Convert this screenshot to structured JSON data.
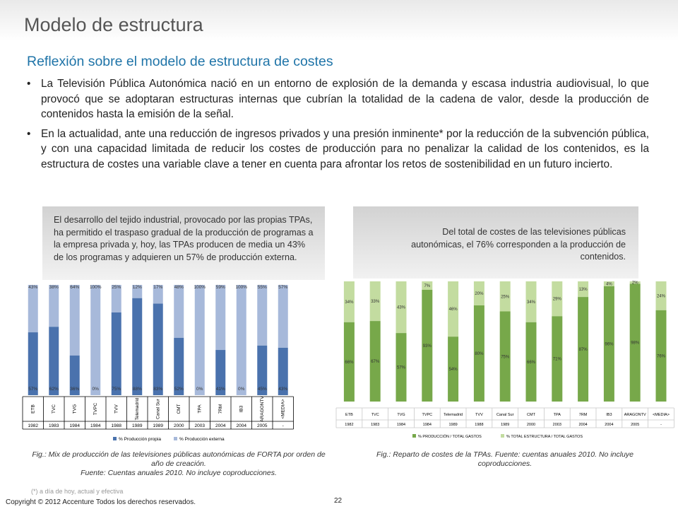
{
  "slide": {
    "title": "Modelo de estructura",
    "subtitle": "Reflexión sobre el modelo de estructura de costes",
    "bullets": [
      "La Televisión Pública Autonómica nació en un entorno de explosión de la demanda y escasa industria audiovisual, lo que provocó que se adoptaran estructuras internas que cubrían la totalidad de la cadena de valor, desde la producción de contenidos hasta la emisión de la señal.",
      "En la actualidad, ante una reducción de ingresos privados y una presión inminente* por la reducción de la subvención pública, y con una capacidad limitada de reducir los costes de producción para no penalizar la calidad de los contenidos, es la estructura de costes una variable clave a tener en cuenta para afrontar los retos de sostenibilidad en un futuro incierto."
    ],
    "callout_left": "El desarrollo del tejido industrial, provocado por las propias TPAs, ha permitido el traspaso gradual de la producción de programas a la empresa privada y, hoy, las TPAs producen de media un 43% de los programas y adquieren un 57% de producción externa.",
    "callout_right": "Del total de costes de las televisiones públicas autonómicas, el 76% corresponden a la producción de contenidos.",
    "caption_left": "Fig.: Mix de producción de las televisiones públicas autonómicas de FORTA por orden de año de creación.\nFuente: Cuentas anuales 2010. No incluye coproducciones.",
    "caption_right": "Fig.: Reparto de costes de la TPAs. Fuente: cuentas anuales 2010. No incluye coproducciones.",
    "footnote": "(*) a día de hoy, actual y efectiva",
    "copyright": "Copyright © 2012 Accenture  Todos los derechos reservados.",
    "page_number": "22"
  },
  "colors": {
    "title": "#555555",
    "subtitle": "#1f74a8",
    "propia": "#4a72ad",
    "externa": "#a7b9da",
    "produccion": "#77a84a",
    "estructura": "#c3dca0"
  },
  "chart_data": [
    {
      "type": "bar",
      "stacked": true,
      "orientation": "vertical",
      "categories": [
        "ETB",
        "TVC",
        "TVG",
        "TVPC",
        "TVV",
        "Telemadrid",
        "Canal Sur",
        "CMT",
        "TPA",
        "7RM",
        "IB3",
        "ARAGONTV",
        "<MEDIA>"
      ],
      "years": [
        "1982",
        "1983",
        "1984",
        "1984",
        "1988",
        "1989",
        "1989",
        "2000",
        "2003",
        "2004",
        "2004",
        "2005",
        "-"
      ],
      "series": [
        {
          "name": "% Producción propia",
          "values": [
            57,
            62,
            36,
            0,
            75,
            88,
            83,
            52,
            0,
            41,
            0,
            45,
            43
          ],
          "labels": [
            "57%",
            "62%",
            "36%",
            "0%",
            "75%",
            "88%",
            "83%",
            "52%",
            "0%",
            "41%",
            "0%",
            "45%",
            "43%"
          ]
        },
        {
          "name": "% Producción externa",
          "values": [
            43,
            38,
            64,
            100,
            25,
            12,
            17,
            48,
            100,
            59,
            100,
            55,
            57
          ],
          "labels": [
            "43%",
            "38%",
            "64%",
            "100%",
            "25%",
            "12%",
            "17%",
            "48%",
            "100%",
            "59%",
            "100%",
            "55%",
            "57%"
          ]
        }
      ],
      "ylim": [
        0,
        100
      ]
    },
    {
      "type": "bar",
      "stacked": true,
      "orientation": "vertical",
      "categories": [
        "ETB",
        "TVC",
        "TVG",
        "TVPC",
        "Telemadrid",
        "TVV",
        "Canal Sur",
        "CMT",
        "TPA",
        "7RM",
        "IB3",
        "ARAGONTV",
        "<MEDIA>"
      ],
      "years": [
        "1982",
        "1983",
        "1984",
        "1984",
        "1989",
        "1988",
        "1989",
        "2000",
        "2003",
        "2004",
        "2004",
        "2005",
        "-"
      ],
      "series": [
        {
          "name": "% PRODUCCIÓN / TOTAL GASTOS",
          "values": [
            66,
            67,
            57,
            93,
            54,
            80,
            75,
            66,
            71,
            87,
            96,
            98,
            76
          ],
          "labels": [
            "66%",
            "67%",
            "57%",
            "93%",
            "54%",
            "80%",
            "75%",
            "66%",
            "71%",
            "87%",
            "96%",
            "98%",
            "76%"
          ]
        },
        {
          "name": "% TOTAL ESTRUCTURA / TOTAL GASTOS",
          "values": [
            34,
            33,
            43,
            7,
            46,
            20,
            25,
            34,
            29,
            13,
            4,
            2,
            24
          ],
          "labels": [
            "34%",
            "33%",
            "43%",
            "7%",
            "46%",
            "20%",
            "25%",
            "34%",
            "29%",
            "13%",
            "4%",
            "2%",
            "24%"
          ]
        }
      ],
      "ylim": [
        0,
        100
      ]
    }
  ]
}
